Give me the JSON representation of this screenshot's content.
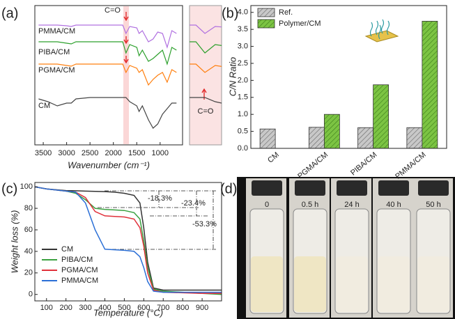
{
  "chart_data": [
    {
      "type": "line",
      "panel_label": "(a)",
      "x_label": "Wavenumber (cm⁻¹)",
      "x": [
        3600,
        3400,
        3200,
        3000,
        2900,
        2800,
        2500,
        2200,
        2000,
        1800,
        1730,
        1650,
        1500,
        1450,
        1380,
        1250,
        1150,
        1050,
        950,
        850,
        750,
        650
      ],
      "xlim": [
        3680,
        520
      ],
      "xticks": [
        3500,
        3000,
        2500,
        2000,
        1500,
        1000
      ],
      "ylim": [
        0,
        100
      ],
      "inset_xlim": [
        1850,
        1600
      ],
      "annotations": [
        "C=O",
        "C=O"
      ],
      "series": [
        {
          "name": "PMMA/CM",
          "color": "#b070e0",
          "values": [
            86,
            86,
            86,
            85.5,
            85,
            86,
            86,
            86,
            86,
            86,
            80,
            85,
            84,
            80,
            82,
            74,
            76,
            81,
            80,
            70,
            82,
            80
          ]
        },
        {
          "name": "PIBA/CM",
          "color": "#2ca02c",
          "values": [
            74,
            74,
            74,
            73,
            72.5,
            74,
            74,
            74,
            74,
            74,
            66,
            72,
            70,
            64,
            68,
            60,
            62,
            65,
            68,
            58,
            70,
            68
          ]
        },
        {
          "name": "PGMA/CM",
          "color": "#ff7f0e",
          "values": [
            58,
            58,
            58,
            57,
            56.5,
            58,
            58,
            58,
            58,
            58,
            52,
            57,
            55,
            52,
            54,
            43,
            47,
            50,
            52,
            45,
            54,
            52
          ]
        },
        {
          "name": "CM",
          "color": "#444444",
          "values": [
            33,
            31,
            28,
            30,
            30,
            33,
            34,
            34,
            34,
            34,
            34,
            31,
            28,
            24,
            28,
            18,
            12,
            15,
            22,
            26,
            30,
            30
          ]
        }
      ]
    },
    {
      "type": "bar",
      "panel_label": "(b)",
      "y_label": "C/N Ratio",
      "categories": [
        "CM",
        "PGMA/CM",
        "PIBA/CM",
        "PMMA/CM"
      ],
      "ylim": [
        0,
        4.2
      ],
      "yticks": [
        {
          "value": 0,
          "label": "0.0"
        },
        0.5,
        {
          "value": 1,
          "label": "1.0"
        },
        1.5,
        {
          "value": 2,
          "label": "2.0"
        },
        2.5,
        {
          "value": 3,
          "label": "3.0"
        },
        3.5,
        {
          "value": 4,
          "label": "4.0"
        }
      ],
      "hatch": true,
      "series": [
        {
          "name": "Ref.",
          "color": "#9e9e9e",
          "values": [
            0.57,
            0.62,
            0.61,
            0.61
          ]
        },
        {
          "name": "Polymer/CM",
          "color": "#5ea82e",
          "values": [
            null,
            1.0,
            1.87,
            3.74
          ]
        }
      ]
    },
    {
      "type": "line",
      "panel_label": "(c)",
      "x_label": "Temperature (°C)",
      "y_label": "Weight loss (%)",
      "x": [
        40,
        100,
        200,
        250,
        300,
        350,
        400,
        450,
        500,
        550,
        580,
        600,
        620,
        650,
        700,
        800,
        900,
        1000
      ],
      "xlim": [
        40,
        1000
      ],
      "xticks": [
        100,
        200,
        300,
        400,
        500,
        600,
        700,
        800,
        900
      ],
      "ylim": [
        -6,
        104
      ],
      "yticks": [
        0,
        20,
        40,
        60,
        80,
        100
      ],
      "annotations": [
        "-18.3%",
        "-23.4%",
        "-53.3%"
      ],
      "series": [
        {
          "name": "CM",
          "color": "#333333",
          "values": [
            100,
            98,
            96.5,
            96.3,
            96,
            95.8,
            95.5,
            95,
            94,
            92,
            85,
            62,
            30,
            6,
            4,
            4,
            4,
            4
          ]
        },
        {
          "name": "PIBA/CM",
          "color": "#3aa040",
          "values": [
            100,
            98,
            96,
            94,
            88,
            80,
            79,
            78.5,
            78,
            76,
            70,
            50,
            25,
            5,
            3,
            2,
            1,
            0
          ]
        },
        {
          "name": "PGMA/CM",
          "color": "#e0303a",
          "values": [
            100,
            98,
            96,
            95,
            90,
            77,
            73,
            72.5,
            72,
            70,
            62,
            45,
            20,
            4,
            2,
            1.5,
            1,
            1
          ]
        },
        {
          "name": "PMMA/CM",
          "color": "#2b6fd6",
          "values": [
            100,
            98,
            96,
            95,
            85,
            60,
            42,
            41.5,
            41,
            40,
            35,
            25,
            12,
            3,
            2,
            2,
            2,
            2
          ]
        }
      ]
    }
  ],
  "photo": {
    "panel_label": "(d)",
    "captions": [
      "0",
      "0.5 h",
      "24 h",
      "40 h",
      "50 h"
    ]
  }
}
